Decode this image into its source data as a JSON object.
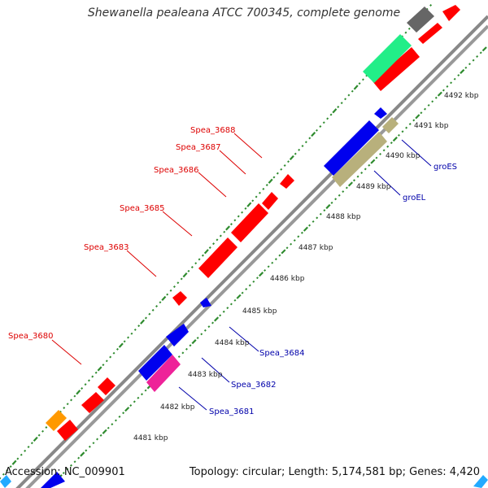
{
  "title": "Shewanella pealeana ATCC 700345, complete genome",
  "accession_text": "Accession: NC_009901",
  "topology_text": "Topology: circular; Length: 5,174,581 bp; Genes: 4,420",
  "colors": {
    "backbone": "#888888",
    "tick": "#2e8b2e",
    "forward_label": "#dd0000",
    "reverse_label": "#0000aa",
    "red_gene": "#ff0000",
    "blue_gene": "#0000ee",
    "khaki_gene": "#b8b07c",
    "green_gene": "#22ee88",
    "gray_gene": "#666666",
    "orange_gene": "#ff9900",
    "pink_gene": "#ee2299",
    "cyan_gene": "#22aaff"
  },
  "kbp_ticks": [
    "4481 kbp",
    "4482 kbp",
    "4483 kbp",
    "4484 kbp",
    "4485 kbp",
    "4486 kbp",
    "4487 kbp",
    "4488 kbp",
    "4489 kbp",
    "4490 kbp",
    "4491 kbp",
    "4492 kbp"
  ],
  "forward_labels": [
    "Spea_3688",
    "Spea_3687",
    "Spea_3686",
    "Spea_3685",
    "Spea_3683",
    "Spea_3680"
  ],
  "reverse_labels": [
    "groES",
    "groEL",
    "Spea_3684",
    "Spea_3682",
    "Spea_3681"
  ]
}
